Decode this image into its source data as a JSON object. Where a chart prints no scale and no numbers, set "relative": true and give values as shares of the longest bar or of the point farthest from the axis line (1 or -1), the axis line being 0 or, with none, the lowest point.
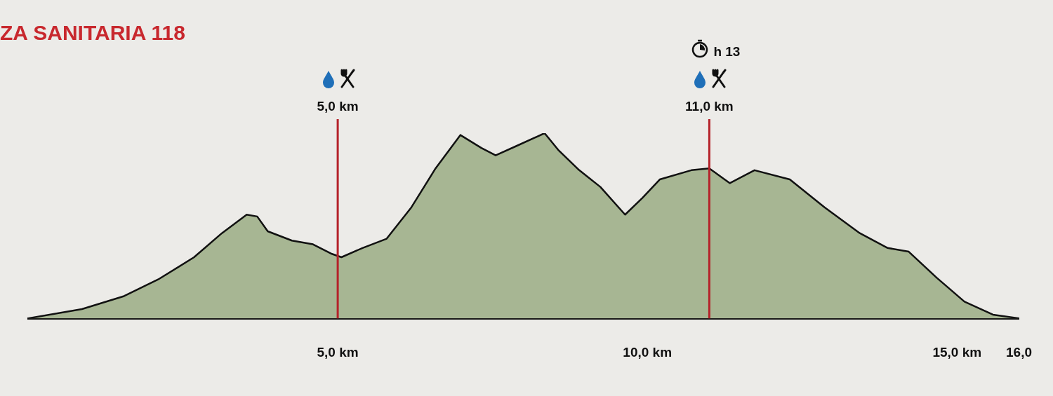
{
  "chart_data": {
    "type": "area",
    "title": "ZA SANITARIA 118",
    "relative": true,
    "xlim": [
      0,
      16
    ],
    "xticks": [
      {
        "value": 5,
        "label": "5,0 km"
      },
      {
        "value": 10,
        "label": "10,0 km"
      },
      {
        "value": 15,
        "label": "15,0 km"
      },
      {
        "value": 16,
        "label": "16,0"
      }
    ],
    "legend": false,
    "ref_lines": [
      {
        "axis": "x",
        "value": 5,
        "label": "5,0 km",
        "color": "#b5222a"
      },
      {
        "axis": "x",
        "value": 11,
        "label": "11,0 km",
        "color": "#b5222a"
      }
    ],
    "annotations": [
      "h 13"
    ],
    "series": [
      {
        "color": "#a7b693",
        "x": [
          0,
          0.87,
          1.55,
          2.1,
          2.68,
          3.13,
          3.53,
          3.7,
          3.87,
          4.26,
          4.6,
          4.89,
          5.06,
          5.4,
          5.79,
          6.19,
          6.58,
          6.98,
          7.32,
          7.55,
          7.88,
          8.34,
          8.56,
          8.9,
          9.24,
          9.64,
          9.92,
          10.2,
          10.71,
          11.0,
          11.33,
          11.73,
          12.3,
          12.86,
          13.43,
          13.88,
          14.22,
          14.67,
          15.12,
          15.58,
          16
        ],
        "values": [
          0,
          0.05,
          0.12,
          0.21,
          0.33,
          0.46,
          0.56,
          0.55,
          0.47,
          0.42,
          0.4,
          0.35,
          0.33,
          0.38,
          0.43,
          0.6,
          0.81,
          0.99,
          0.92,
          0.88,
          0.93,
          1,
          0.91,
          0.8,
          0.71,
          0.56,
          0.65,
          0.75,
          0.8,
          0.81,
          0.73,
          0.8,
          0.75,
          0.6,
          0.46,
          0.38,
          0.36,
          0.22,
          0.09,
          0.02,
          0
        ]
      }
    ]
  }
}
